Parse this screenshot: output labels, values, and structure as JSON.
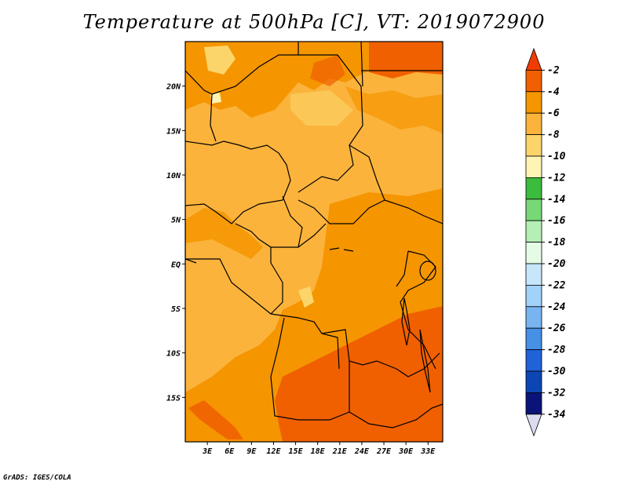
{
  "title": "Temperature at 500hPa [C], VT: 2019072900",
  "credit": "GrADS: IGES/COLA",
  "map": {
    "lon_range": [
      0,
      35
    ],
    "lat_range": [
      -20,
      25
    ],
    "lat_labels": [
      "20N",
      "15N",
      "10N",
      "5N",
      "EQ",
      "5S",
      "10S",
      "15S"
    ],
    "lat_values": [
      20,
      15,
      10,
      5,
      0,
      -5,
      -10,
      -15
    ],
    "lon_labels": [
      "3E",
      "6E",
      "9E",
      "12E",
      "15E",
      "18E",
      "21E",
      "24E",
      "27E",
      "30E",
      "33E"
    ],
    "lon_values": [
      3,
      6,
      9,
      12,
      15,
      18,
      21,
      24,
      27,
      30,
      33
    ],
    "fill_colors": {
      "-2_to_-4": "#f06000",
      "-4_to_-6": "#f59500",
      "-6_to_-8": "#fbb33c",
      "-8_to_-10": "#fcd56a",
      "-10_to_-12": "#fff4b3"
    }
  },
  "colorbar": {
    "labels": [
      "-2",
      "-4",
      "-6",
      "-8",
      "-10",
      "-12",
      "-14",
      "-16",
      "-18",
      "-20",
      "-22",
      "-24",
      "-26",
      "-28",
      "-30",
      "-32",
      "-34"
    ],
    "colors": [
      "#f03c00",
      "#f06000",
      "#f59500",
      "#fbb33c",
      "#fcd56a",
      "#fff4b3",
      "#3cbc3c",
      "#78d878",
      "#b4f0b4",
      "#e6fbe6",
      "#c8e6fa",
      "#a0d2fa",
      "#78b4f0",
      "#4690e6",
      "#2062d8",
      "#0c46b4",
      "#0a1478",
      "#dcdcf0"
    ]
  }
}
